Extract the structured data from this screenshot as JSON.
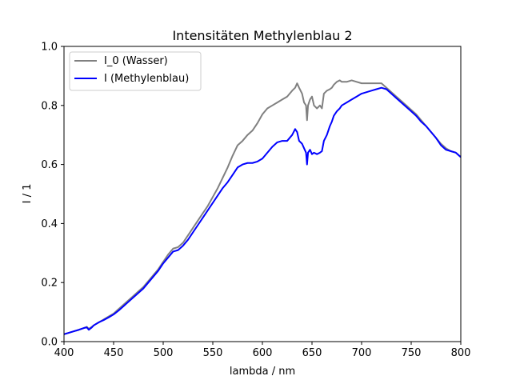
{
  "chart_data": {
    "type": "line",
    "title": "Intensitäten Methylenblau 2",
    "xlabel": "lambda / nm",
    "ylabel": "I / 1",
    "xlim": [
      400,
      800
    ],
    "ylim": [
      0.0,
      1.0
    ],
    "xticks": [
      400,
      450,
      500,
      550,
      600,
      650,
      700,
      750,
      800
    ],
    "yticks": [
      0.0,
      0.2,
      0.4,
      0.6,
      0.8,
      1.0
    ],
    "xtick_labels": [
      "400",
      "450",
      "500",
      "550",
      "600",
      "650",
      "700",
      "750",
      "800"
    ],
    "ytick_labels": [
      "0.0",
      "0.2",
      "0.4",
      "0.6",
      "0.8",
      "1.0"
    ],
    "grid": false,
    "legend_position": "top-left",
    "series": [
      {
        "name": "I_0 (Wasser)",
        "color": "#808080",
        "x": [
          400,
          405,
          410,
          415,
          420,
          423,
          425,
          428,
          430,
          435,
          440,
          445,
          450,
          455,
          460,
          465,
          470,
          475,
          480,
          485,
          490,
          495,
          500,
          505,
          510,
          515,
          520,
          525,
          530,
          535,
          540,
          545,
          550,
          555,
          560,
          565,
          570,
          575,
          580,
          585,
          590,
          595,
          600,
          605,
          610,
          615,
          620,
          625,
          630,
          633,
          635,
          637,
          640,
          642,
          644,
          645,
          646,
          648,
          650,
          652,
          655,
          658,
          660,
          662,
          665,
          668,
          670,
          672,
          675,
          678,
          680,
          685,
          690,
          695,
          700,
          705,
          710,
          715,
          720,
          725,
          730,
          735,
          740,
          745,
          750,
          755,
          760,
          765,
          770,
          775,
          780,
          785,
          790,
          795,
          800
        ],
        "y": [
          0.025,
          0.03,
          0.035,
          0.04,
          0.046,
          0.05,
          0.043,
          0.05,
          0.055,
          0.065,
          0.075,
          0.085,
          0.095,
          0.11,
          0.125,
          0.14,
          0.155,
          0.17,
          0.185,
          0.205,
          0.225,
          0.245,
          0.27,
          0.295,
          0.315,
          0.32,
          0.335,
          0.36,
          0.385,
          0.41,
          0.435,
          0.46,
          0.49,
          0.52,
          0.555,
          0.59,
          0.63,
          0.665,
          0.68,
          0.7,
          0.715,
          0.74,
          0.77,
          0.79,
          0.8,
          0.81,
          0.82,
          0.83,
          0.85,
          0.86,
          0.875,
          0.86,
          0.84,
          0.81,
          0.8,
          0.75,
          0.8,
          0.82,
          0.83,
          0.8,
          0.79,
          0.8,
          0.79,
          0.84,
          0.85,
          0.855,
          0.86,
          0.87,
          0.88,
          0.885,
          0.88,
          0.88,
          0.885,
          0.88,
          0.875,
          0.875,
          0.875,
          0.875,
          0.875,
          0.86,
          0.845,
          0.83,
          0.815,
          0.8,
          0.785,
          0.77,
          0.75,
          0.73,
          0.71,
          0.69,
          0.67,
          0.655,
          0.645,
          0.64,
          0.625
        ]
      },
      {
        "name": "I (Methylenblau)",
        "color": "#0000ff",
        "x": [
          400,
          405,
          410,
          415,
          420,
          423,
          425,
          428,
          430,
          435,
          440,
          445,
          450,
          455,
          460,
          465,
          470,
          475,
          480,
          485,
          490,
          495,
          500,
          505,
          510,
          515,
          520,
          525,
          530,
          535,
          540,
          545,
          550,
          555,
          560,
          565,
          570,
          575,
          580,
          585,
          590,
          595,
          600,
          605,
          610,
          615,
          620,
          625,
          630,
          633,
          635,
          637,
          640,
          642,
          644,
          645,
          646,
          648,
          650,
          652,
          655,
          658,
          660,
          662,
          665,
          668,
          670,
          672,
          675,
          678,
          680,
          685,
          690,
          695,
          700,
          705,
          710,
          715,
          720,
          725,
          730,
          735,
          740,
          745,
          750,
          755,
          760,
          765,
          770,
          775,
          780,
          785,
          790,
          795,
          800
        ],
        "y": [
          0.025,
          0.03,
          0.035,
          0.04,
          0.046,
          0.048,
          0.04,
          0.048,
          0.055,
          0.065,
          0.073,
          0.082,
          0.092,
          0.105,
          0.12,
          0.135,
          0.15,
          0.165,
          0.18,
          0.2,
          0.22,
          0.24,
          0.265,
          0.285,
          0.305,
          0.31,
          0.325,
          0.345,
          0.37,
          0.395,
          0.42,
          0.445,
          0.47,
          0.495,
          0.52,
          0.54,
          0.565,
          0.59,
          0.6,
          0.605,
          0.605,
          0.61,
          0.62,
          0.64,
          0.66,
          0.675,
          0.68,
          0.68,
          0.7,
          0.72,
          0.71,
          0.68,
          0.67,
          0.655,
          0.64,
          0.6,
          0.64,
          0.65,
          0.635,
          0.64,
          0.635,
          0.64,
          0.645,
          0.68,
          0.7,
          0.73,
          0.745,
          0.765,
          0.78,
          0.79,
          0.8,
          0.81,
          0.82,
          0.83,
          0.84,
          0.845,
          0.85,
          0.855,
          0.86,
          0.855,
          0.84,
          0.825,
          0.81,
          0.795,
          0.78,
          0.765,
          0.745,
          0.73,
          0.71,
          0.69,
          0.665,
          0.65,
          0.645,
          0.64,
          0.625
        ]
      }
    ]
  }
}
